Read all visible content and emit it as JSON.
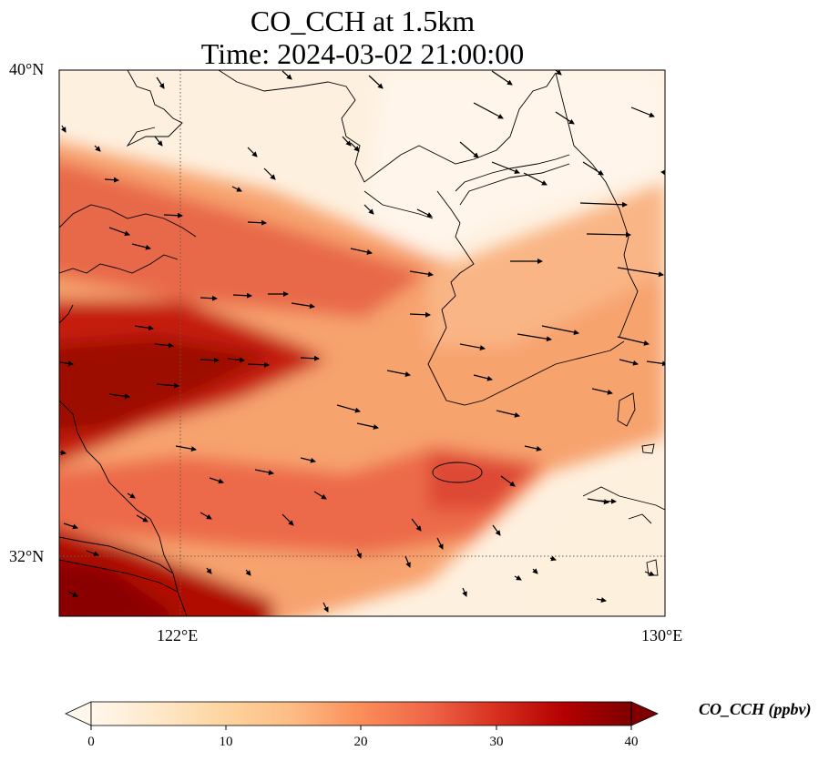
{
  "title": {
    "line1": "CO_CCH at 1.5km",
    "line2": "Time: 2024-03-02 21:00:00"
  },
  "axes": {
    "lat_ticks": [
      "40°N",
      "32°N"
    ],
    "lon_ticks": [
      "122°E",
      "130°E"
    ],
    "lat_range": [
      31,
      40
    ],
    "lon_range": [
      120,
      130
    ],
    "gridlines": "dotted at 122°E and 32°N"
  },
  "colorbar": {
    "label": "CO_CCH (ppbv)",
    "ticks": [
      "0",
      "10",
      "20",
      "30",
      "40"
    ],
    "min": 0,
    "max": 40,
    "colormap": [
      "#fff7ec",
      "#fee8c8",
      "#fdd49e",
      "#fdbb84",
      "#fc8d59",
      "#ef6548",
      "#d7301f",
      "#b30000",
      "#7f0000"
    ],
    "extend": "both"
  },
  "map": {
    "field": "CO_CCH",
    "level": "1.5km",
    "plume_description_values": {
      "main_plume_max": 40,
      "background": 3
    }
  }
}
